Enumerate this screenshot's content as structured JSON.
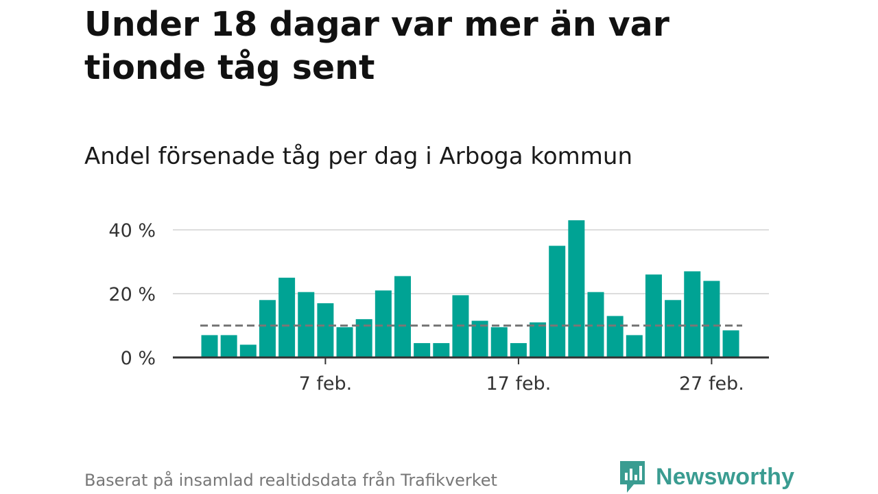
{
  "header": {
    "title": "Under 18 dagar var mer än var tionde tåg sent",
    "subtitle": "Andel försenade tåg per dag i Arboga kommun"
  },
  "footer": {
    "source": "Baserat på insamlad realtidsdata från Trafikverket",
    "brand": "Newsworthy"
  },
  "colors": {
    "bar": "#00a394",
    "reference_line": "#777777",
    "gridline": "#dddddd",
    "axis": "#333333",
    "brand": "#3a9c91"
  },
  "chart_data": {
    "type": "bar",
    "categories": [
      "1 feb.",
      "2 feb.",
      "3 feb.",
      "4 feb.",
      "5 feb.",
      "6 feb.",
      "7 feb.",
      "8 feb.",
      "9 feb.",
      "10 feb.",
      "11 feb.",
      "12 feb.",
      "13 feb.",
      "14 feb.",
      "15 feb.",
      "16 feb.",
      "17 feb.",
      "18 feb.",
      "19 feb.",
      "20 feb.",
      "21 feb.",
      "22 feb.",
      "23 feb.",
      "24 feb.",
      "25 feb.",
      "26 feb.",
      "27 feb.",
      "28 feb."
    ],
    "series": [
      {
        "values": [
          7,
          7,
          4,
          18,
          25,
          20.5,
          17,
          9.5,
          12,
          21,
          25.5,
          4.5,
          4.5,
          19.5,
          11.5,
          9.5,
          4.5,
          11,
          35,
          43,
          20.5,
          13,
          7,
          26,
          18,
          27,
          24,
          8.5
        ]
      }
    ],
    "reference_line": 10,
    "ylim": [
      0,
      45
    ],
    "y_ticks": [
      0,
      20,
      40
    ],
    "y_tick_labels": [
      "0 %",
      "20 %",
      "40 %"
    ],
    "x_ticks": [
      "7 feb.",
      "17 feb.",
      "27 feb."
    ],
    "grid": true,
    "legend": "none",
    "title": "Under 18 dagar var mer än var tionde tåg sent",
    "subtitle": "Andel försenade tåg per dag i Arboga kommun",
    "xlabel": "",
    "ylabel": ""
  }
}
